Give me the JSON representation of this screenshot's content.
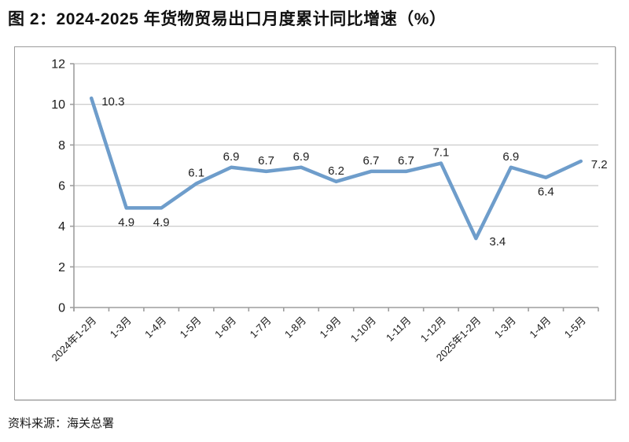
{
  "page": {
    "title": "图 2：2024-2025 年货物贸易出口月度累计同比增速（%）",
    "source": "资料来源：海关总署"
  },
  "chart_data": {
    "type": "line",
    "title": "2024-2025 年货物贸易出口月度累计同比增速（%）",
    "categories": [
      "2024年1-2月",
      "1-3月",
      "1-4月",
      "1-5月",
      "1-6月",
      "1-7月",
      "1-8月",
      "1-9月",
      "1-10月",
      "1-11月",
      "1-12月",
      "2025年1-2月",
      "1-3月",
      "1-4月",
      "1-5月"
    ],
    "values": [
      10.3,
      4.9,
      4.9,
      6.1,
      6.9,
      6.7,
      6.9,
      6.2,
      6.7,
      6.7,
      7.1,
      3.4,
      6.9,
      6.4,
      7.2
    ],
    "xlabel": "",
    "ylabel": "",
    "ylim": [
      0,
      12
    ],
    "yticks": [
      0,
      2,
      4,
      6,
      8,
      10,
      12
    ],
    "grid": true,
    "legend": false,
    "line_color": "#6E9DCB",
    "gridline_color": "#c6c6c6",
    "axis_color": "#9e9e9e",
    "label_color": "#212121",
    "data_labels_shown": true,
    "label_positions": [
      "right",
      "below",
      "below",
      "above",
      "above",
      "above",
      "above",
      "above",
      "above",
      "above",
      "above",
      "right-below",
      "above",
      "below",
      "right"
    ]
  }
}
